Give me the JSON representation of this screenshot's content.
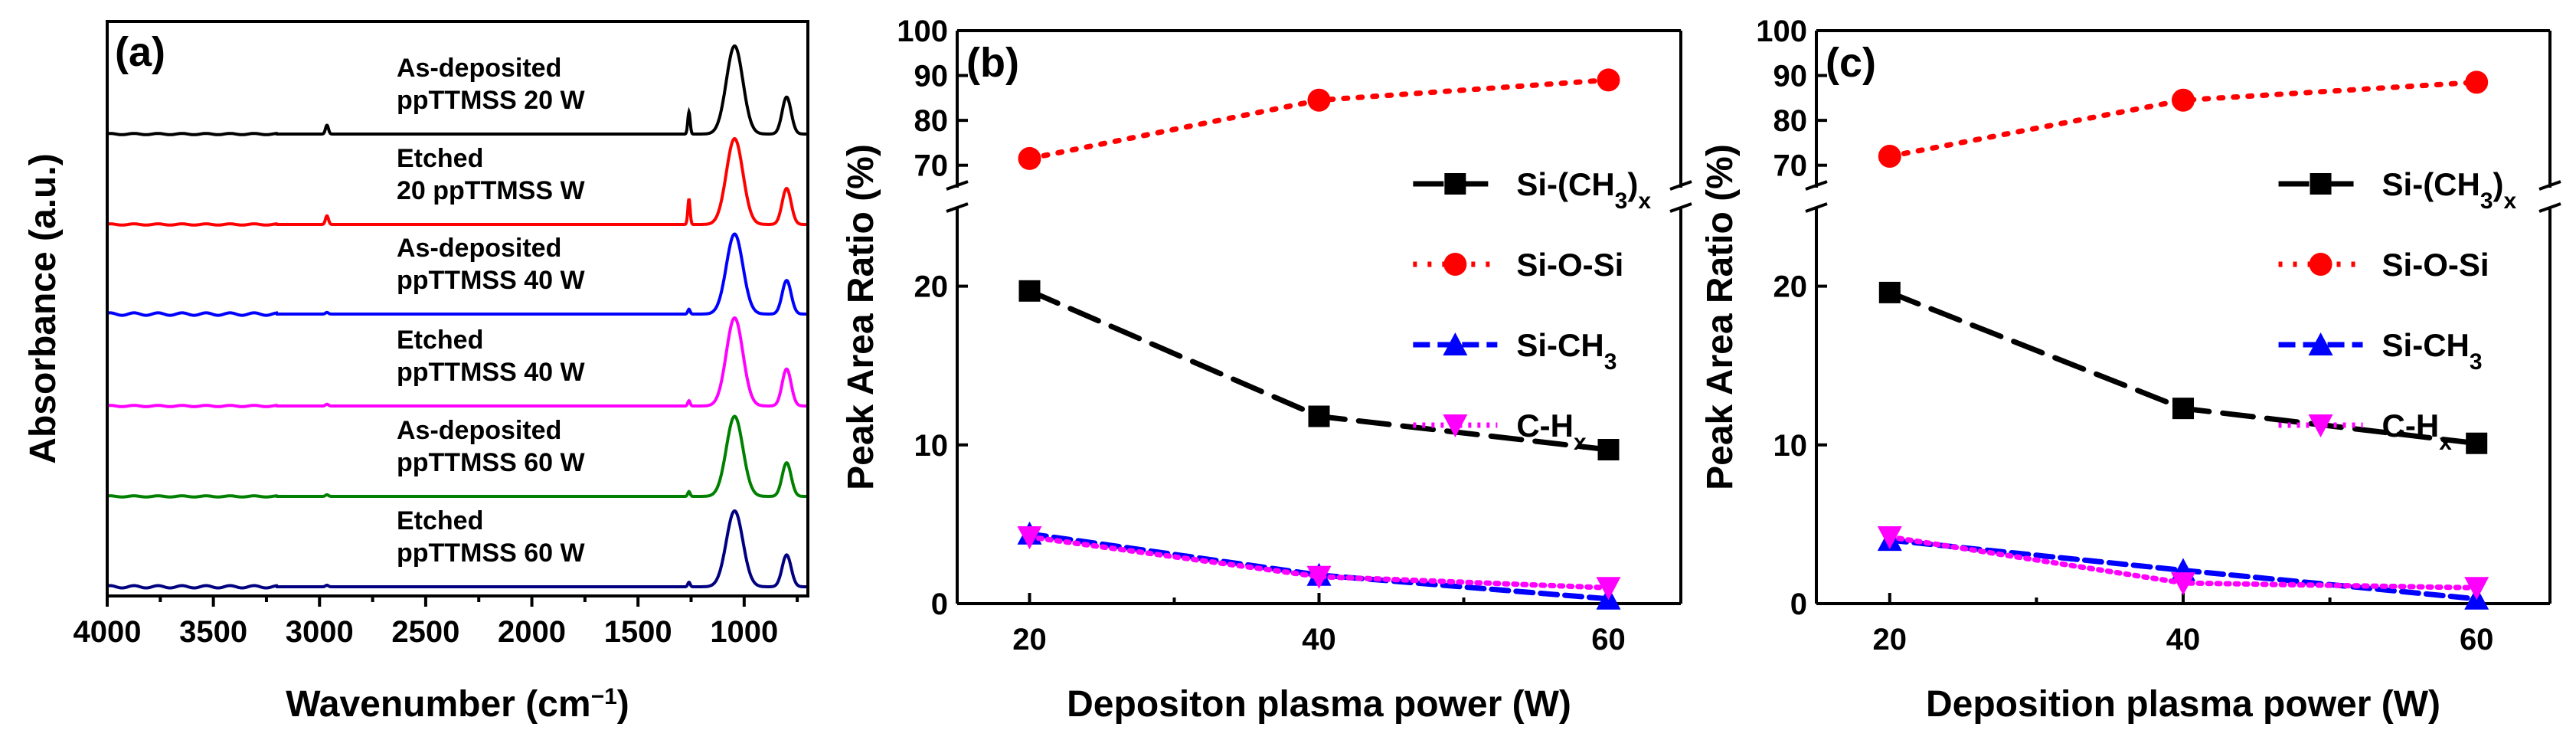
{
  "chart_data": [
    {
      "panel": "(a)",
      "type": "line",
      "xlabel": "Wavenumber (cm",
      "xlabel_sup": "−1",
      "xlabel_close": ")",
      "ylabel": "Absorbance (a.u.)",
      "xlim": [
        4000,
        700
      ],
      "xticks": [
        4000,
        3500,
        3000,
        2500,
        2000,
        1500,
        1000
      ],
      "series": [
        {
          "line1": "As-deposited",
          "line2": "ppTTMSS 20 W",
          "color": "#000000",
          "peak": 1.0
        },
        {
          "line1": "Etched",
          "line2": "20 ppTTMSS W",
          "color": "#ff0000",
          "peak": 1.0
        },
        {
          "line1": "As-deposited",
          "line2": "ppTTMSS 40 W",
          "color": "#0000ff",
          "peak": 0.95
        },
        {
          "line1": "Etched",
          "line2": "ppTTMSS 40 W",
          "color": "#ff00ff",
          "peak": 1.0
        },
        {
          "line1": "As-deposited",
          "line2": "ppTTMSS 60 W",
          "color": "#008000",
          "peak": 0.95
        },
        {
          "line1": "Etched",
          "line2": "ppTTMSS 60 W",
          "color": "#000080",
          "peak": 0.9
        }
      ]
    },
    {
      "panel": "(b)",
      "type": "line",
      "xlabel": "Depositon plasma power (W)",
      "ylabel": "Peak Area Ratio (%)",
      "x": [
        20,
        40,
        60
      ],
      "xlim": [
        15,
        65
      ],
      "ylim_lower": [
        0,
        25
      ],
      "ylim_upper": [
        65,
        100
      ],
      "yticks_lower": [
        0,
        10,
        20
      ],
      "yticks_upper": [
        70,
        80,
        90,
        100
      ],
      "series": [
        {
          "name": "Si-(CH",
          "sub": "3",
          "close": ")",
          "sub2": "x",
          "values": [
            19.7,
            11.8,
            9.7
          ],
          "color": "#000000",
          "marker": "square",
          "dash": "40,18"
        },
        {
          "name": "Si-O-Si",
          "values": [
            71.5,
            84.5,
            89.0
          ],
          "color": "#ff0000",
          "marker": "circle",
          "dash": "5,14"
        },
        {
          "name": "Si-CH",
          "sub": "3",
          "values": [
            4.4,
            1.8,
            0.3
          ],
          "color": "#0000ff",
          "marker": "triangle-up",
          "dash": "22,10"
        },
        {
          "name": "C-H",
          "sub": "x",
          "values": [
            4.2,
            1.7,
            1.0
          ],
          "color": "#ff00ff",
          "marker": "triangle-down",
          "dash": "4,8"
        }
      ]
    },
    {
      "panel": "(c)",
      "type": "line",
      "xlabel": "Deposition plasma power (W)",
      "ylabel": "Peak Area Ratio (%)",
      "x": [
        20,
        40,
        60
      ],
      "xlim": [
        15,
        65
      ],
      "ylim_lower": [
        0,
        25
      ],
      "ylim_upper": [
        65,
        100
      ],
      "yticks_lower": [
        0,
        10,
        20
      ],
      "yticks_upper": [
        70,
        80,
        90,
        100
      ],
      "series": [
        {
          "name": "Si-(CH",
          "sub": "3",
          "close": ")",
          "sub2": "x",
          "values": [
            19.6,
            12.3,
            10.1
          ],
          "color": "#000000",
          "marker": "square",
          "dash": "40,18"
        },
        {
          "name": "Si-O-Si",
          "values": [
            72.0,
            84.5,
            88.5
          ],
          "color": "#ff0000",
          "marker": "circle",
          "dash": "5,14"
        },
        {
          "name": "Si-CH",
          "sub": "3",
          "values": [
            4.0,
            2.1,
            0.3
          ],
          "color": "#0000ff",
          "marker": "triangle-up",
          "dash": "22,10"
        },
        {
          "name": "C-H",
          "sub": "x",
          "values": [
            4.2,
            1.3,
            1.0
          ],
          "color": "#ff00ff",
          "marker": "triangle-down",
          "dash": "4,8"
        }
      ]
    }
  ]
}
